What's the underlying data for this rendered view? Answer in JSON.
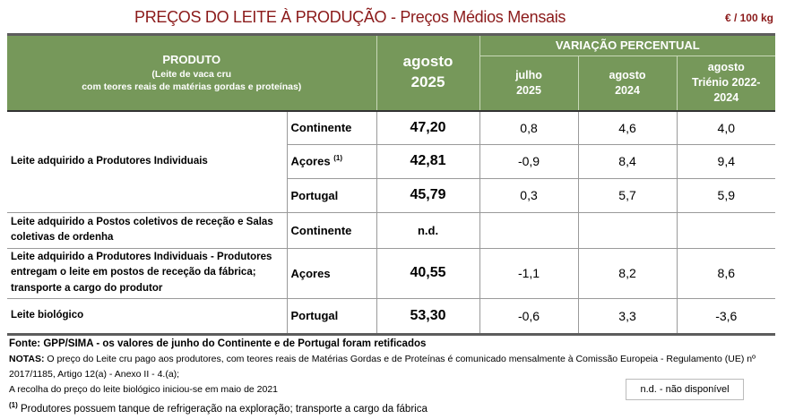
{
  "title": "PREÇOS DO LEITE À PRODUÇÃO - Preços Médios Mensais",
  "unit": "€ / 100 kg",
  "header": {
    "produto": "PRODUTO",
    "produto_sub1": "(Leite de vaca cru",
    "produto_sub2": "com teores reais de matérias gordas e proteínas)",
    "month": "agosto",
    "year": "2025",
    "variacao": "VARIAÇÃO PERCENTUAL",
    "cols": [
      [
        "julho",
        "2025"
      ],
      [
        "agosto",
        "2024"
      ],
      [
        "agosto",
        "Triénio 2022-",
        "2024"
      ]
    ]
  },
  "rows": [
    {
      "product": "Leite adquirido a Produtores Individuais",
      "region": "Continente",
      "value": "47,20",
      "v1": "0,8",
      "v2": "4,6",
      "v3": "4,0"
    },
    {
      "region": "Açores",
      "sup": "(1)",
      "value": "42,81",
      "v1": "-0,9",
      "v2": "8,4",
      "v3": "9,4"
    },
    {
      "region": "Portugal",
      "value": "45,79",
      "v1": "0,3",
      "v2": "5,7",
      "v3": "5,9"
    },
    {
      "product": "Leite adquirido a Postos coletivos de receção e Salas coletivas de ordenha",
      "region": "Continente",
      "value": "n.d.",
      "v1": "",
      "v2": "",
      "v3": ""
    },
    {
      "product": "Leite adquirido a Produtores Individuais - Produtores entregam o leite em postos de receção da fábrica; transporte a cargo do produtor",
      "region": "Açores",
      "value": "40,55",
      "v1": "-1,1",
      "v2": "8,2",
      "v3": "8,6"
    },
    {
      "product": "Leite biológico",
      "region": "Portugal",
      "value": "53,30",
      "v1": "-0,6",
      "v2": "3,3",
      "v3": "-3,6"
    }
  ],
  "notes": {
    "fonte_label": "Fonte:",
    "fonte": " GPP/SIMA - os valores de junho do Continente e de Portugal foram retificados",
    "notas_label": "NOTAS:",
    "notas1": " O preço do Leite cru pago aos produtores, com teores reais de Matérias Gordas e de Proteínas é comunicado mensalmente à Comissão Europeia - Regulamento (UE) nº",
    "notas2": "2017/1185, Artigo 12(a) - Anexo II - 4.(a);",
    "notas3": "A recolha do preço do leite biológico iniciou-se em maio de 2021",
    "footnote_mark": "(1)",
    "footnote": " Produtores possuem tanque de refrigeração na exploração; transporte a cargo da fábrica"
  },
  "legend": "n.d. - não disponível"
}
